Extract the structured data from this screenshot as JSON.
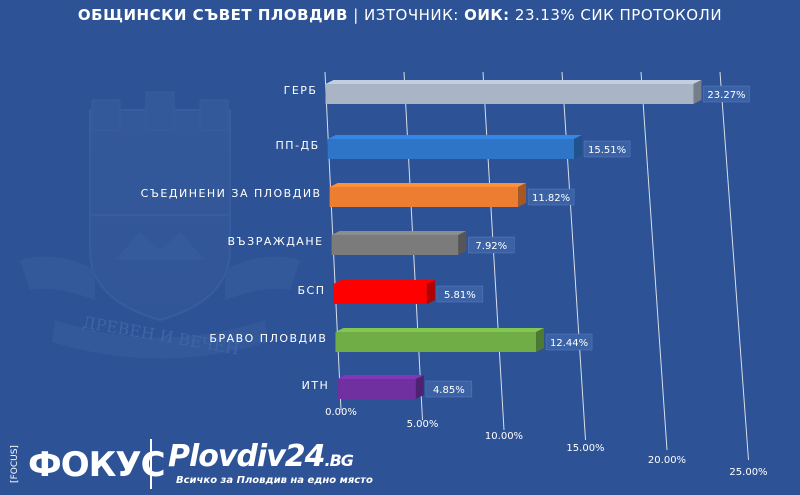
{
  "title": {
    "part1": "ОБЩИНСКИ СЪВЕТ ПЛОВДИВ",
    "sep": " | ",
    "part2": "ИЗТОЧНИК: ",
    "part3": "ОИК:",
    "part4": " 23.13% СИК ПРОТОКОЛИ"
  },
  "crest": {
    "motto": "ДРЕВЕН И ВЕЧЕН"
  },
  "footer": {
    "focus_small": "[FOCUS]",
    "focus_big": "ФОКУС",
    "plovdiv24": "Plovdiv24",
    "plovdiv24_tld": ".BG",
    "tagline": "Всичко за Пловдив на едно място"
  },
  "colors": {
    "background": "#2d5295"
  },
  "chart_data": {
    "type": "bar",
    "orientation": "horizontal",
    "style": "3d",
    "categories": [
      "ГЕРБ",
      "ПП-ДБ",
      "СЪЕДИНЕНИ ЗА ПЛОВДИВ",
      "ВЪЗРАЖДАНЕ",
      "БСП",
      "БРАВО ПЛОВДИВ",
      "ИТН"
    ],
    "values": [
      23.27,
      15.51,
      11.82,
      7.92,
      5.81,
      12.44,
      4.85
    ],
    "data_labels": [
      "23.27%",
      "15.51%",
      "11.82%",
      "7.92%",
      "5.81%",
      "12.44%",
      "4.85%"
    ],
    "colors": [
      "#a9b4c4",
      "#2e75c8",
      "#ed7d31",
      "#7b7b7b",
      "#ff0000",
      "#70ad47",
      "#7030a0"
    ],
    "x_ticks": [
      "0.00%",
      "5.00%",
      "10.00%",
      "15.00%",
      "20.00%",
      "25.00%"
    ],
    "xlim": [
      0,
      25
    ],
    "grid": true,
    "legend": "none"
  }
}
